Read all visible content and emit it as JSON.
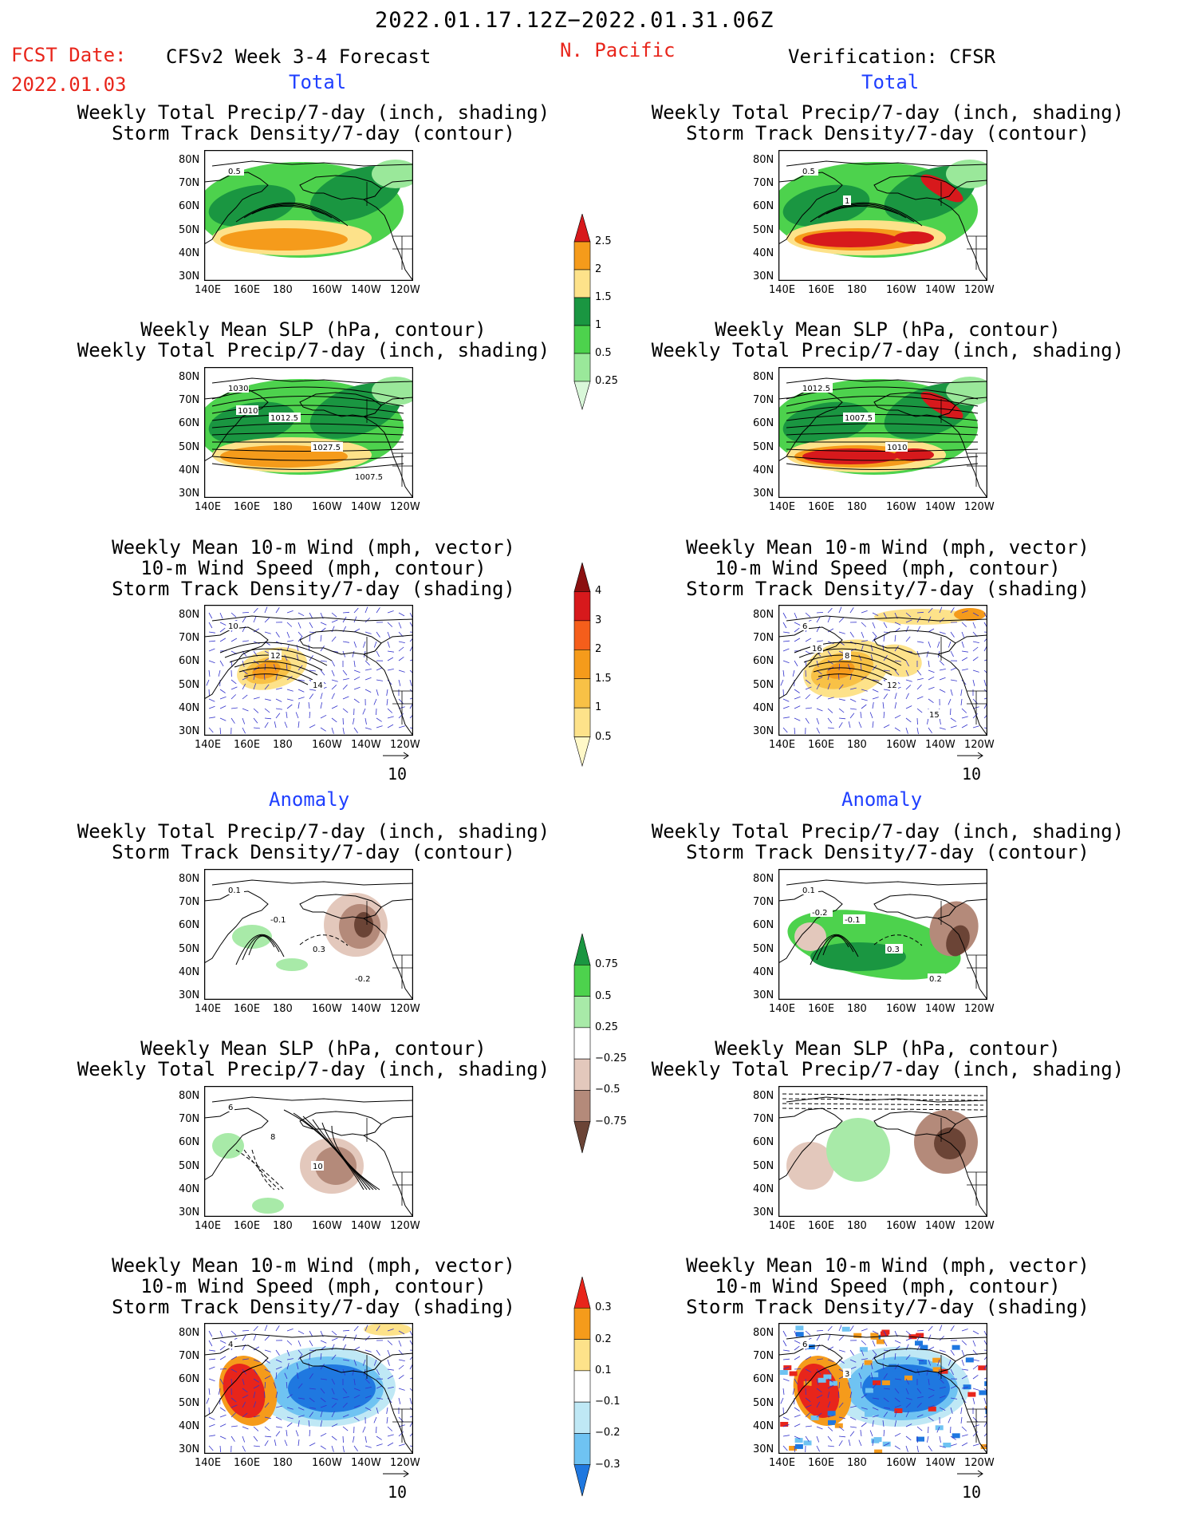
{
  "header": {
    "date_range": "2022.01.17.12Z−2022.01.31.06Z",
    "fcst_label": "FCST Date:",
    "fcst_date": "2022.01.03",
    "forecast_title": "CFSv2 Week 3-4 Forecast",
    "region": "N. Pacific",
    "verification": "Verification: CFSR"
  },
  "sections": {
    "total": "Total",
    "anomaly": "Anomaly"
  },
  "panel_titles": {
    "precip_storm": [
      "Weekly Total Precip/7-day (inch, shading)",
      "Storm Track Density/7-day (contour)"
    ],
    "slp_precip": [
      "Weekly Mean SLP (hPa, contour)",
      "Weekly Total Precip/7-day (inch, shading)"
    ],
    "wind_storm": [
      "Weekly Mean 10-m Wind (mph, vector)",
      "10-m Wind Speed (mph, contour)",
      "Storm Track Density/7-day (shading)"
    ]
  },
  "axes": {
    "lat_labels": [
      "80N",
      "70N",
      "60N",
      "50N",
      "40N",
      "30N"
    ],
    "lon_labels": [
      "140E",
      "160E",
      "180",
      "160W",
      "140W",
      "120W"
    ]
  },
  "vector_ref": "10",
  "colorbars": {
    "precip_total": {
      "labels": [
        "2.5",
        "2",
        "1.5",
        "1",
        "0.5",
        "0.25"
      ],
      "colors": [
        "#d7191c",
        "#f59b1b",
        "#fde28a",
        "#1a9641",
        "#4dd24d",
        "#9ae89a",
        "#d9f7d9"
      ]
    },
    "storm_total": {
      "labels": [
        "4",
        "3",
        "2",
        "1.5",
        "1",
        "0.5"
      ],
      "colors": [
        "#8b1010",
        "#d7191c",
        "#f55e1b",
        "#f59b1b",
        "#f8c146",
        "#fde28a",
        "#fff8c8"
      ]
    },
    "precip_anom": {
      "labels": [
        "0.75",
        "0.5",
        "0.25",
        "−0.25",
        "−0.5",
        "−0.75"
      ],
      "colors": [
        "#1a9641",
        "#4dd24d",
        "#a8eaa8",
        "#ffffff",
        "#e3c8bc",
        "#b48a7a",
        "#6b4436"
      ]
    },
    "storm_anom": {
      "labels": [
        "0.3",
        "0.2",
        "0.1",
        "−0.1",
        "−0.2",
        "−0.3"
      ],
      "colors": [
        "#e8251b",
        "#f59b1b",
        "#fde28a",
        "#ffffff",
        "#bfe8f5",
        "#6fc3f2",
        "#1f78e0"
      ]
    }
  },
  "chart_data": [
    {
      "type": "heatmap",
      "title": "Weekly Total Precip/7-day (inch, shading) / Storm Track Density/7-day (contour)",
      "panel": "forecast-total-1",
      "contour_labels": [
        "0.5"
      ]
    },
    {
      "type": "heatmap",
      "title": "Weekly Total Precip/7-day (inch, shading) / Storm Track Density/7-day (contour)",
      "panel": "verification-total-1",
      "contour_labels": [
        "0.5",
        "1"
      ]
    },
    {
      "type": "heatmap",
      "title": "Weekly Mean SLP (hPa, contour) / Weekly Total Precip/7-day (inch, shading)",
      "panel": "forecast-total-2",
      "contour_labels": [
        "1030",
        "1012.5",
        "1027.5",
        "1007.5",
        "1010"
      ]
    },
    {
      "type": "heatmap",
      "title": "Weekly Mean SLP (hPa, contour) / Weekly Total Precip/7-day (inch, shading)",
      "panel": "verification-total-2",
      "contour_labels": [
        "1012.5",
        "1007.5",
        "1010"
      ]
    },
    {
      "type": "heatmap",
      "title": "Weekly Mean 10-m Wind / 10-m Wind Speed / Storm Track Density",
      "panel": "forecast-total-3",
      "contour_labels": [
        "10",
        "12",
        "14"
      ]
    },
    {
      "type": "heatmap",
      "title": "Weekly Mean 10-m Wind / 10-m Wind Speed / Storm Track Density",
      "panel": "verification-total-3",
      "contour_labels": [
        "6",
        "8",
        "12",
        "15",
        "16"
      ]
    },
    {
      "type": "heatmap",
      "title": "Precip anomaly / Storm Track Density anomaly",
      "panel": "forecast-anom-1",
      "contour_labels": [
        "0.1",
        "-0.1",
        "0.3",
        "-0.2"
      ]
    },
    {
      "type": "heatmap",
      "title": "Precip anomaly / Storm Track Density anomaly",
      "panel": "verification-anom-1",
      "contour_labels": [
        "0.1",
        "-0.1",
        "0.3",
        "0.2",
        "-0.2"
      ]
    },
    {
      "type": "heatmap",
      "title": "SLP anomaly / Precip anomaly",
      "panel": "forecast-anom-2",
      "contour_labels": [
        "6",
        "8",
        "10"
      ]
    },
    {
      "type": "heatmap",
      "title": "SLP anomaly / Precip anomaly",
      "panel": "verification-anom-2",
      "contour_labels": []
    },
    {
      "type": "heatmap",
      "title": "Wind anomaly / Wind speed anomaly / Storm Track Density anomaly",
      "panel": "forecast-anom-3",
      "contour_labels": [
        "4"
      ]
    },
    {
      "type": "heatmap",
      "title": "Wind anomaly / Wind speed anomaly / Storm Track Density anomaly",
      "panel": "verification-anom-3",
      "contour_labels": [
        "6",
        "3"
      ]
    }
  ]
}
